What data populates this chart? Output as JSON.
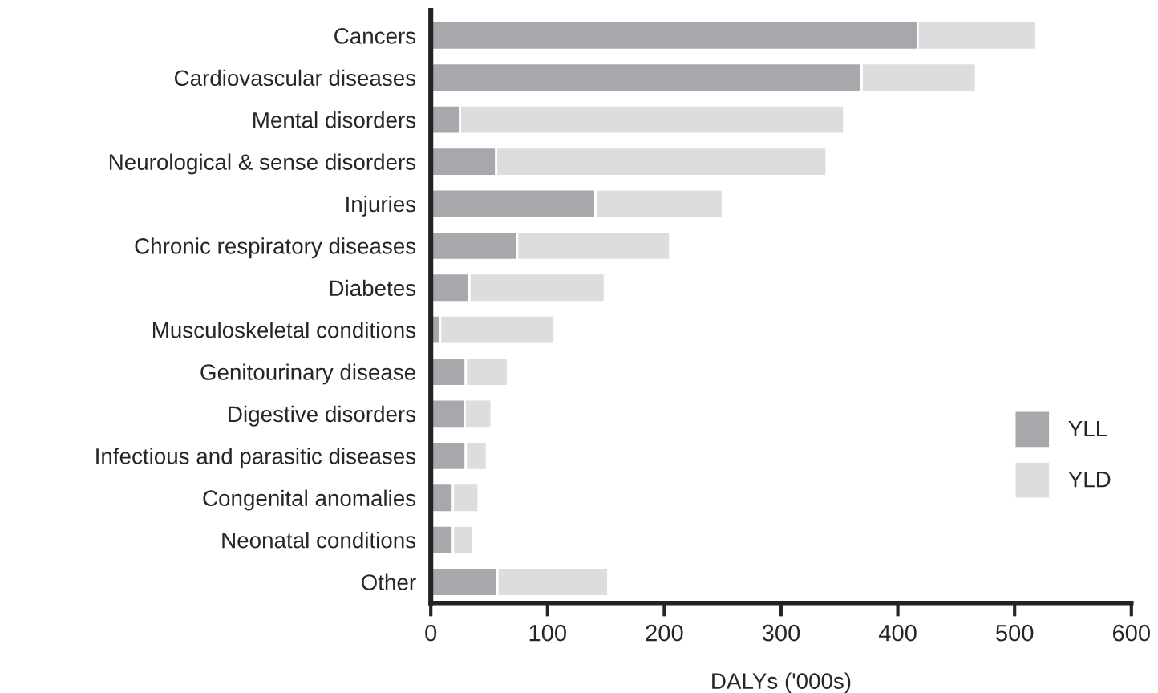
{
  "chart_data": {
    "type": "bar",
    "orientation": "horizontal",
    "stacked": true,
    "categories": [
      "Cancers",
      "Cardiovascular diseases",
      "Mental disorders",
      "Neurological & sense disorders",
      "Injuries",
      "Chronic respiratory diseases",
      "Diabetes",
      "Musculoskeletal conditions",
      "Genitourinary disease",
      "Digestive disorders",
      "Infectious and parasitic diseases",
      "Congenital anomalies",
      "Neonatal conditions",
      "Other"
    ],
    "series": [
      {
        "name": "YLL",
        "color": "#a7a8ab",
        "values": [
          417,
          369,
          25,
          56,
          141,
          74,
          33,
          8,
          30,
          29,
          30,
          19,
          19,
          57
        ]
      },
      {
        "name": "YLD",
        "color": "#dcdddf",
        "values": [
          101,
          98,
          329,
          283,
          109,
          131,
          116,
          98,
          36,
          23,
          18,
          22,
          17,
          95
        ]
      }
    ],
    "xlabel": "DALYs ('000s)",
    "xlim": [
      0,
      600
    ],
    "xticks": [
      0,
      100,
      200,
      300,
      400,
      500,
      600
    ],
    "grid": false,
    "legend": "right"
  }
}
